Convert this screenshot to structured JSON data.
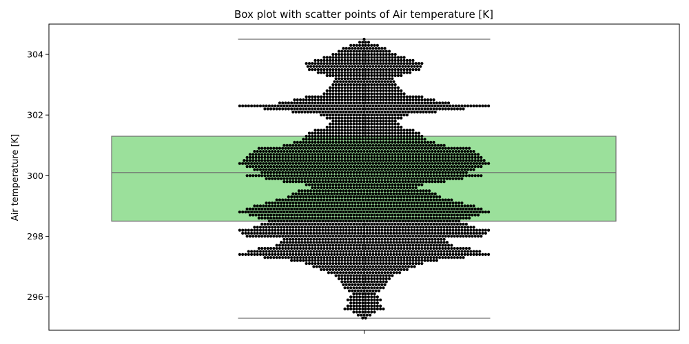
{
  "chart_data": {
    "type": "box",
    "title": "Box plot with scatter points of Air temperature [K]",
    "xlabel": "",
    "ylabel": "Air temperature [K]",
    "ylim": [
      294.9,
      305.0
    ],
    "yticks": [
      296,
      298,
      300,
      302,
      304
    ],
    "categories": [
      ""
    ],
    "grid": false,
    "box": {
      "whisker_low": 295.3,
      "q1": 298.5,
      "median": 300.1,
      "q3": 301.3,
      "whisker_high": 304.5,
      "fill_color": "#9be09b",
      "edge_color": "#6e6e6e"
    },
    "scatter": {
      "color": "#000000",
      "y_range": [
        295.3,
        304.5
      ],
      "y_step": 0.1,
      "profile": [
        [
          295.3,
          2
        ],
        [
          295.5,
          8
        ],
        [
          295.6,
          14
        ],
        [
          295.8,
          10
        ],
        [
          295.9,
          12
        ],
        [
          296.1,
          8
        ],
        [
          296.3,
          14
        ],
        [
          296.5,
          16
        ],
        [
          296.7,
          20
        ],
        [
          296.9,
          30
        ],
        [
          297.1,
          40
        ],
        [
          297.2,
          50
        ],
        [
          297.3,
          68
        ],
        [
          297.4,
          85
        ],
        [
          297.6,
          72
        ],
        [
          297.7,
          60
        ],
        [
          297.9,
          55
        ],
        [
          298.0,
          80
        ],
        [
          298.2,
          85
        ],
        [
          298.3,
          75
        ],
        [
          298.5,
          65
        ],
        [
          298.6,
          72
        ],
        [
          298.8,
          85
        ],
        [
          299.0,
          75
        ],
        [
          299.2,
          60
        ],
        [
          299.3,
          52
        ],
        [
          299.5,
          45
        ],
        [
          299.6,
          36
        ],
        [
          299.7,
          40
        ],
        [
          299.8,
          55
        ],
        [
          300.0,
          80
        ],
        [
          300.1,
          70
        ],
        [
          300.2,
          75
        ],
        [
          300.4,
          85
        ],
        [
          300.5,
          82
        ],
        [
          300.7,
          78
        ],
        [
          300.9,
          72
        ],
        [
          301.0,
          55
        ],
        [
          301.2,
          42
        ],
        [
          301.4,
          38
        ],
        [
          301.5,
          34
        ],
        [
          301.6,
          26
        ],
        [
          301.8,
          22
        ],
        [
          302.0,
          30
        ],
        [
          302.2,
          68
        ],
        [
          302.3,
          85
        ],
        [
          302.4,
          58
        ],
        [
          302.5,
          48
        ],
        [
          302.6,
          40
        ],
        [
          302.7,
          28
        ],
        [
          302.9,
          24
        ],
        [
          303.0,
          22
        ],
        [
          303.2,
          20
        ],
        [
          303.4,
          32
        ],
        [
          303.5,
          38
        ],
        [
          303.7,
          40
        ],
        [
          303.8,
          34
        ],
        [
          304.0,
          22
        ],
        [
          304.1,
          18
        ],
        [
          304.2,
          15
        ],
        [
          304.3,
          10
        ],
        [
          304.4,
          4
        ],
        [
          304.5,
          1
        ]
      ]
    }
  }
}
